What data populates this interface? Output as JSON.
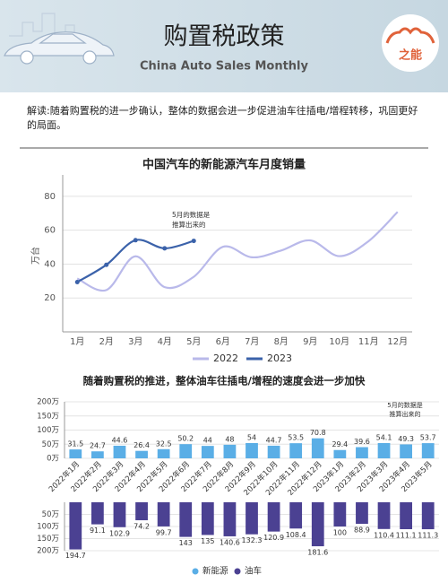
{
  "header": {
    "title": "购置税政策",
    "subtitle": "China Auto Sales Monthly",
    "logo": "之能"
  },
  "intro": "解读:随着购置税的进一步确认，整体的数据会进一步促进油车往插电/增程转移，巩固更好的局面。",
  "chart_data": [
    {
      "type": "line",
      "title": "中国汽车的新能源汽车月度销量",
      "y_label": "万台",
      "categories": [
        "1月",
        "2月",
        "3月",
        "4月",
        "5月",
        "6月",
        "7月",
        "8月",
        "9月",
        "10月",
        "11月",
        "12月"
      ],
      "series": [
        {
          "name": "2022",
          "color": "#b9b9ea",
          "values": [
            31.5,
            24.7,
            44.6,
            26.4,
            32.5,
            50.2,
            44,
            48,
            54,
            44.7,
            53.5,
            70.8
          ]
        },
        {
          "name": "2023",
          "color": "#3b62aa",
          "values": [
            29.4,
            39.6,
            54.1,
            49.3,
            53.7,
            null,
            null,
            null,
            null,
            null,
            null,
            null
          ]
        }
      ],
      "ylim": [
        0,
        90
      ],
      "yticks": [
        20,
        40,
        60,
        80
      ],
      "grid": true,
      "legend": "bottom",
      "annotation": [
        "5月的数据是",
        "推算出来的"
      ]
    },
    {
      "type": "diverging-bar",
      "title": "随着购置税的推进，整体油车往插电/增程的速度会进一步加快",
      "categories": [
        "2022年1月",
        "2022年2月",
        "2022年3月",
        "2022年4月",
        "2022年5月",
        "2022年6月",
        "2022年7月",
        "2022年8月",
        "2022年9月",
        "2022年10月",
        "2022年11月",
        "2022年12月",
        "2023年1月",
        "2023年2月",
        "2023年3月",
        "2023年4月",
        "2023年5月"
      ],
      "series": [
        {
          "name": "新能源",
          "color": "#5aaee6",
          "values": [
            31.5,
            24.7,
            44.6,
            26.4,
            32.5,
            50.2,
            44,
            48,
            54,
            44.7,
            53.5,
            70.8,
            29.4,
            39.6,
            54.1,
            49.3,
            53.7
          ]
        },
        {
          "name": "油车",
          "color": "#4b4192",
          "axis": "y2",
          "values": [
            194.7,
            91.1,
            102.9,
            74.2,
            99.7,
            143,
            135,
            140.6,
            132.3,
            120.9,
            108.4,
            181.6,
            100,
            88.9,
            110.4,
            111.1,
            111.3
          ]
        }
      ],
      "ylim": [
        0,
        200
      ],
      "yticks": [
        {
          "value": 0,
          "label": "0万"
        },
        {
          "value": 50,
          "label": "50万"
        },
        {
          "value": 100,
          "label": "100万"
        },
        {
          "value": 150,
          "label": "150万"
        },
        {
          "value": 200,
          "label": "200万"
        }
      ],
      "y2lim": [
        0,
        200
      ],
      "y2_direction": "down",
      "y2ticks": [
        {
          "value": 50,
          "label": "50万"
        },
        {
          "value": 100,
          "label": "100万"
        },
        {
          "value": 150,
          "label": "150万"
        },
        {
          "value": 200,
          "label": "200万"
        }
      ],
      "grid": true,
      "legend": "bottom",
      "annotation": [
        "5月的数据是",
        "推算出来的"
      ]
    }
  ]
}
